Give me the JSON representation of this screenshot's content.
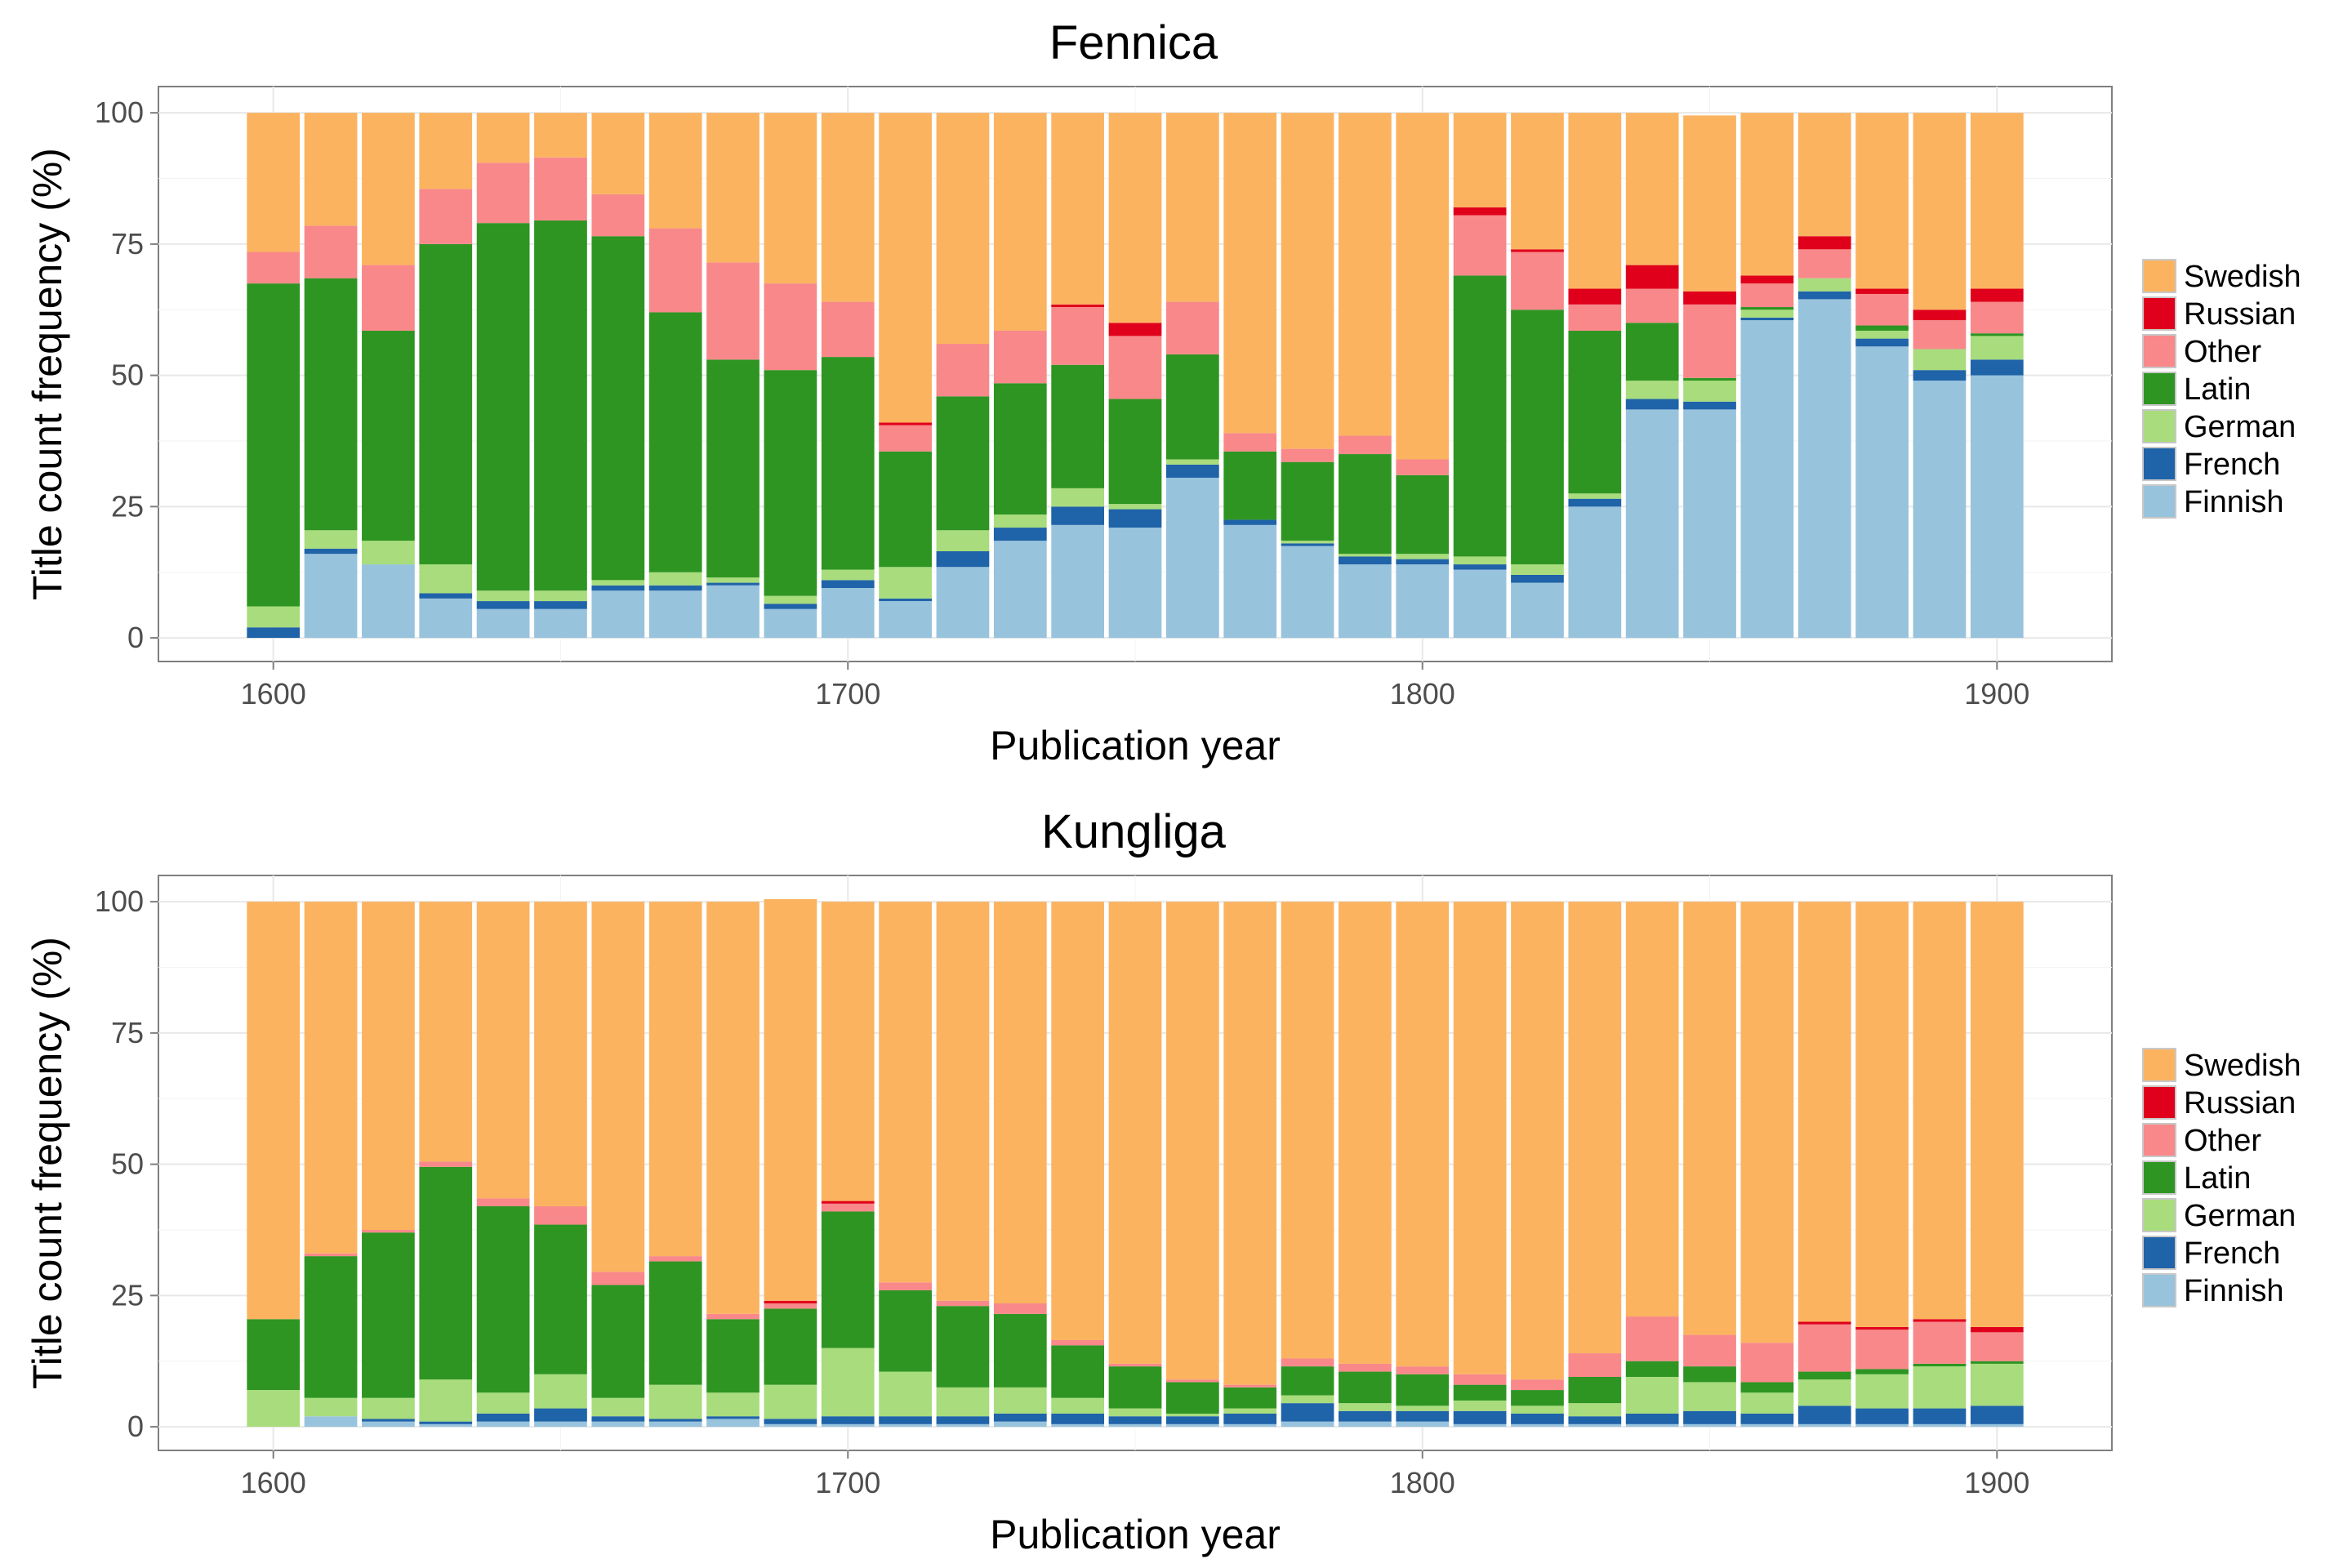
{
  "legend_order": [
    "Swedish",
    "Russian",
    "Other",
    "Latin",
    "German",
    "French",
    "Finnish"
  ],
  "colors": {
    "Swedish": "#fbb360",
    "Russian": "#e0001b",
    "Other": "#f8888a",
    "Latin": "#2e9522",
    "German": "#a8dc7c",
    "French": "#1f63a8",
    "Finnish": "#98c3dc"
  },
  "chart_data": [
    {
      "type": "bar",
      "stacked": true,
      "title": "Fennica",
      "xlabel": "Publication year",
      "ylabel": "Title count frequency (%)",
      "xlim": [
        1580,
        1920
      ],
      "ylim": [
        -4.5,
        105
      ],
      "x_ticks": [
        1600,
        1700,
        1800,
        1900
      ],
      "y_ticks": [
        0,
        25,
        50,
        75,
        100
      ],
      "legend_position": "right",
      "grid": true,
      "x": [
        1600,
        1610,
        1620,
        1630,
        1640,
        1650,
        1660,
        1670,
        1680,
        1690,
        1700,
        1710,
        1720,
        1730,
        1740,
        1750,
        1760,
        1770,
        1780,
        1790,
        1800,
        1810,
        1820,
        1830,
        1840,
        1850,
        1860,
        1870,
        1880,
        1890,
        1900
      ],
      "series": [
        {
          "name": "Finnish",
          "values": [
            0,
            16,
            14,
            7.5,
            5.5,
            5.5,
            9,
            9,
            10,
            5.5,
            9.5,
            7,
            13.5,
            18.5,
            21.5,
            21,
            30.5,
            21.5,
            17.5,
            14,
            14,
            13,
            10.5,
            25,
            43.5,
            43.5,
            60.5,
            64.5,
            55.5,
            49,
            50
          ]
        },
        {
          "name": "French",
          "values": [
            2,
            1,
            0,
            1,
            1.5,
            1.5,
            1,
            1,
            0.5,
            1,
            1.5,
            0.5,
            3,
            2.5,
            3.5,
            3.5,
            2.5,
            1,
            0.5,
            1.5,
            1,
            1,
            1.5,
            1.5,
            2,
            1.5,
            0.5,
            1.5,
            1.5,
            2,
            3
          ]
        },
        {
          "name": "German",
          "values": [
            4,
            3.5,
            4.5,
            5.5,
            2,
            2,
            1,
            2.5,
            1,
            1.5,
            2,
            6,
            4,
            2.5,
            3.5,
            1,
            1,
            0,
            0.5,
            0.5,
            1,
            1.5,
            2,
            1,
            3.5,
            4,
            1.5,
            2.5,
            1.5,
            4,
            4.5
          ]
        },
        {
          "name": "Latin",
          "values": [
            61.5,
            48,
            40,
            61,
            70,
            70.5,
            65.5,
            49.5,
            41.5,
            43,
            40.5,
            22,
            25.5,
            25,
            23.5,
            20,
            20,
            13,
            15,
            19,
            15,
            53.5,
            48.5,
            31,
            11,
            0.5,
            0.5,
            0,
            1,
            0,
            0.5
          ]
        },
        {
          "name": "Other",
          "values": [
            6,
            10,
            12.5,
            10.5,
            11.5,
            12,
            8,
            16,
            18.5,
            16.5,
            10.5,
            5,
            10,
            10,
            11,
            12,
            10,
            3.5,
            2.5,
            3.5,
            3,
            11.5,
            11,
            5,
            6.5,
            14,
            4.5,
            5.5,
            6,
            5.5,
            6
          ]
        },
        {
          "name": "Russian",
          "values": [
            0,
            0,
            0,
            0,
            0,
            0,
            0,
            0,
            0,
            0,
            0,
            0.5,
            0,
            0,
            0.5,
            2.5,
            0,
            0,
            0,
            0,
            0,
            1.5,
            0.5,
            3,
            4.5,
            2.5,
            1.5,
            2.5,
            1,
            2,
            2.5
          ]
        },
        {
          "name": "Swedish",
          "values": [
            26.5,
            21.5,
            29,
            14.5,
            9.5,
            8.5,
            15.5,
            22,
            28.5,
            32.5,
            36,
            59,
            44,
            41.5,
            36.5,
            40,
            36,
            61,
            64,
            61.5,
            66,
            18,
            26,
            33.5,
            29,
            33.5,
            31,
            23.5,
            33.5,
            37.5,
            33.5
          ]
        }
      ]
    },
    {
      "type": "bar",
      "stacked": true,
      "title": "Kungliga",
      "xlabel": "Publication year",
      "ylabel": "Title count frequency (%)",
      "xlim": [
        1580,
        1920
      ],
      "ylim": [
        -4.5,
        105
      ],
      "x_ticks": [
        1600,
        1700,
        1800,
        1900
      ],
      "y_ticks": [
        0,
        25,
        50,
        75,
        100
      ],
      "legend_position": "right",
      "grid": true,
      "x": [
        1600,
        1610,
        1620,
        1630,
        1640,
        1650,
        1660,
        1670,
        1680,
        1690,
        1700,
        1710,
        1720,
        1730,
        1740,
        1750,
        1760,
        1770,
        1780,
        1790,
        1800,
        1810,
        1820,
        1830,
        1840,
        1850,
        1860,
        1870,
        1880,
        1890,
        1900
      ],
      "series": [
        {
          "name": "Finnish",
          "values": [
            0,
            2,
            1,
            0.5,
            1,
            1,
            1,
            1,
            1.5,
            0.5,
            0.5,
            0.5,
            0.5,
            1,
            0.5,
            0.5,
            0.5,
            0.5,
            1,
            1,
            1,
            0.5,
            0.5,
            0.5,
            0.5,
            0.5,
            0.5,
            0.5,
            0.5,
            0.5,
            0.5
          ]
        },
        {
          "name": "French",
          "values": [
            0,
            0,
            0.5,
            0.5,
            1.5,
            2.5,
            1,
            0.5,
            0.5,
            1,
            1.5,
            1.5,
            1.5,
            1.5,
            2,
            1.5,
            1.5,
            2,
            3.5,
            2,
            2,
            2.5,
            2,
            1.5,
            2,
            2.5,
            2,
            3.5,
            3,
            3,
            3.5
          ]
        },
        {
          "name": "German",
          "values": [
            7,
            3.5,
            4,
            8,
            4,
            6.5,
            3.5,
            6.5,
            4.5,
            6.5,
            13,
            8.5,
            5.5,
            5,
            3,
            1.5,
            0.5,
            1,
            1.5,
            1.5,
            1,
            2,
            1.5,
            2.5,
            7,
            5.5,
            4,
            5,
            6.5,
            8,
            8
          ]
        },
        {
          "name": "Latin",
          "values": [
            13.5,
            27,
            31.5,
            40.5,
            35.5,
            28.5,
            21.5,
            23.5,
            14,
            14.5,
            26,
            15.5,
            15.5,
            14,
            10,
            8,
            6,
            4,
            5.5,
            6,
            6,
            3,
            3,
            5,
            3,
            3,
            2,
            1.5,
            1,
            0.5,
            0.5
          ]
        },
        {
          "name": "Other",
          "values": [
            0,
            0.5,
            0.5,
            1,
            1.5,
            3.5,
            2.5,
            1,
            1,
            1,
            1.5,
            1.5,
            1,
            2,
            1,
            0.5,
            0.5,
            0.5,
            1.5,
            1.5,
            1.5,
            2,
            2,
            4.5,
            8.5,
            6,
            7.5,
            9,
            7.5,
            8,
            5.5
          ]
        },
        {
          "name": "Russian",
          "values": [
            0,
            0,
            0,
            0,
            0,
            0,
            0,
            0,
            0,
            0.5,
            0.5,
            0,
            0,
            0,
            0,
            0,
            0,
            0,
            0,
            0,
            0,
            0,
            0,
            0,
            0,
            0,
            0,
            0.5,
            0.5,
            0.5,
            1
          ]
        },
        {
          "name": "Swedish",
          "values": [
            79.5,
            67,
            62.5,
            49.5,
            56.5,
            58,
            70.5,
            67.5,
            78.5,
            76.5,
            57,
            72.5,
            76,
            76.5,
            83.5,
            88,
            91,
            92,
            87,
            88,
            88.5,
            90,
            91,
            86,
            79,
            82.5,
            84,
            80,
            81,
            79.5,
            81
          ]
        }
      ]
    }
  ]
}
